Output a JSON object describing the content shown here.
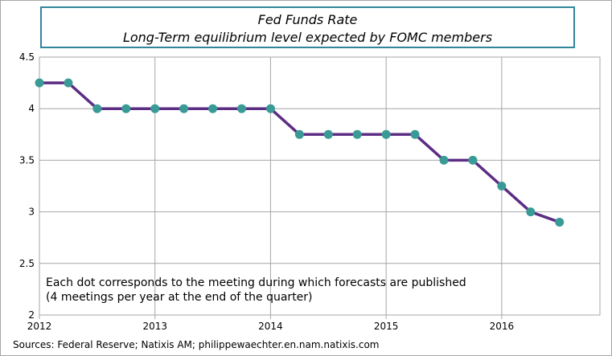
{
  "chart_data": {
    "type": "line",
    "title": "Fed Funds Rate",
    "subtitle": "Long-Term equilibrium  level expected by FOMC members",
    "xlabel": "",
    "ylabel": "",
    "x_ticks": [
      "2012",
      "2013",
      "2014",
      "2015",
      "2016"
    ],
    "x_tick_values": [
      2012,
      2013,
      2014,
      2015,
      2016
    ],
    "y_ticks": [
      "2",
      "2.5",
      "3",
      "3.5",
      "4",
      "4.5"
    ],
    "y_tick_values": [
      2,
      2.5,
      3,
      3.5,
      4,
      4.5
    ],
    "xlim": [
      2012,
      2016.85
    ],
    "ylim": [
      2,
      4.5
    ],
    "grid": true,
    "series": [
      {
        "name": "Long-Term equilibrium level",
        "color": "#5c2d83",
        "marker_color": "#3a9a96",
        "x": [
          2012.0,
          2012.25,
          2012.5,
          2012.75,
          2013.0,
          2013.25,
          2013.5,
          2013.75,
          2014.0,
          2014.25,
          2014.5,
          2014.75,
          2015.0,
          2015.25,
          2015.5,
          2015.75,
          2016.0,
          2016.25,
          2016.5
        ],
        "values": [
          4.25,
          4.25,
          4.0,
          4.0,
          4.0,
          4.0,
          4.0,
          4.0,
          4.0,
          3.75,
          3.75,
          3.75,
          3.75,
          3.75,
          3.5,
          3.5,
          3.25,
          3.0,
          2.9
        ]
      }
    ],
    "annotation_lines": [
      "Each dot corresponds to the meeting during which forecasts are published",
      "(4 meetings per year at the end of the quarter)"
    ]
  },
  "footer": {
    "source": "Sources: Federal Reserve; Natixis AM; philippewaechter.en.nam.natixis.com"
  }
}
